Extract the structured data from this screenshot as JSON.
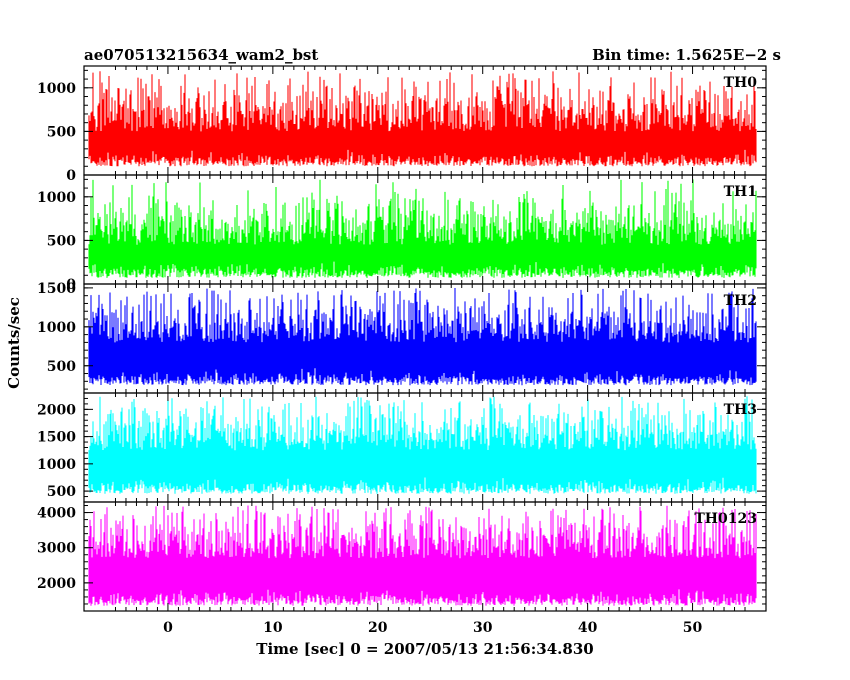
{
  "header": {
    "title": "ae070513215634_wam2_bst",
    "bin_time": "Bin time: 1.5625E−2 s"
  },
  "chart_data": {
    "type": "line",
    "title": "ae070513215634_wam2_bst",
    "xlabel": "Time [sec] 0 = 2007/05/13 21:56:34.830",
    "ylabel": "Counts/sec",
    "xlim": [
      -8,
      57
    ],
    "x_ticks": [
      0,
      10,
      20,
      30,
      40,
      50
    ],
    "data_x_range": [
      -7.5,
      56
    ],
    "bin_time_s": 0.015625,
    "grid": false,
    "panels": [
      {
        "name": "TH0",
        "color": "#ff0000",
        "ylim": [
          0,
          1250
        ],
        "y_ticks": [
          0,
          500,
          1000
        ],
        "base": 100,
        "mean": 500,
        "peak": 1200
      },
      {
        "name": "TH1",
        "color": "#00ff00",
        "ylim": [
          0,
          1250
        ],
        "y_ticks": [
          0,
          500,
          1000
        ],
        "base": 70,
        "mean": 450,
        "peak": 1200
      },
      {
        "name": "TH2",
        "color": "#0000ff",
        "ylim": [
          150,
          1550
        ],
        "y_ticks": [
          500,
          1000,
          1500
        ],
        "base": 250,
        "mean": 800,
        "peak": 1500
      },
      {
        "name": "TH3",
        "color": "#00ffff",
        "ylim": [
          300,
          2300
        ],
        "y_ticks": [
          500,
          1000,
          1500,
          2000
        ],
        "base": 450,
        "mean": 1250,
        "peak": 2250
      },
      {
        "name": "TH0123",
        "color": "#ff00ff",
        "ylim": [
          1200,
          4300
        ],
        "y_ticks": [
          2000,
          3000,
          4000
        ],
        "base": 1350,
        "mean": 2700,
        "peak": 4200
      }
    ]
  }
}
